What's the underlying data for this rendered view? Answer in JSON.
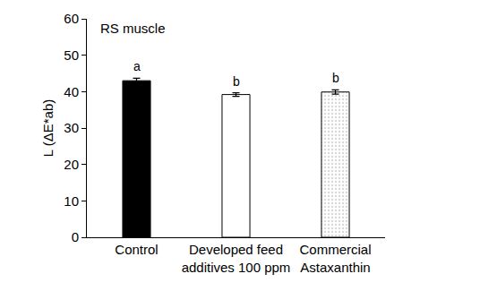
{
  "chart_data": {
    "type": "bar",
    "y_label": "L (ΔE*ab)",
    "annotations": [
      {
        "text": "RS muscle"
      }
    ],
    "categories": [
      "Control",
      "Developed feed\nadditives 100 ppm",
      "Commercial\nAstaxanthin"
    ],
    "values": [
      43.0,
      39.2,
      39.9
    ],
    "errors": [
      0.7,
      0.5,
      0.6
    ],
    "significance": [
      "a",
      "b",
      "b"
    ],
    "colors": [
      "#000000",
      "#ffffff",
      "#d9d9d9"
    ],
    "ylim": [
      0,
      60
    ],
    "yticks": [
      0,
      10,
      20,
      30,
      40,
      50,
      60
    ],
    "grid": false
  }
}
